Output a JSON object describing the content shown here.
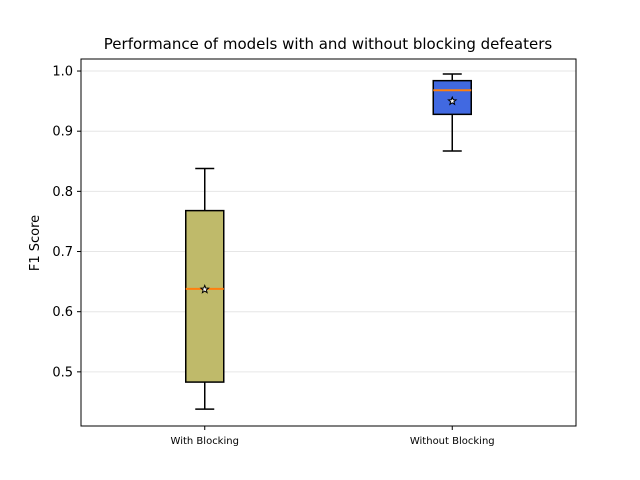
{
  "chart_data": {
    "type": "box",
    "title": "Performance of models with and without blocking defeaters",
    "xlabel": "",
    "ylabel": "F1 Score",
    "ylim": [
      0.41,
      1.02
    ],
    "yticks": [
      0.5,
      0.6,
      0.7,
      0.8,
      0.9,
      1.0
    ],
    "grid": "y",
    "categories": [
      "With Blocking",
      "Without Blocking"
    ],
    "boxes": [
      {
        "label": "With Blocking",
        "whisker_low": 0.438,
        "q1": 0.483,
        "median": 0.638,
        "mean": 0.637,
        "q3": 0.768,
        "whisker_high": 0.838,
        "color": "#bfba6a"
      },
      {
        "label": "Without Blocking",
        "whisker_low": 0.867,
        "q1": 0.928,
        "median": 0.968,
        "mean": 0.95,
        "q3": 0.984,
        "whisker_high": 0.995,
        "color": "#4169e1"
      }
    ],
    "median_color": "#ff7f0e",
    "mean_marker": "star"
  }
}
